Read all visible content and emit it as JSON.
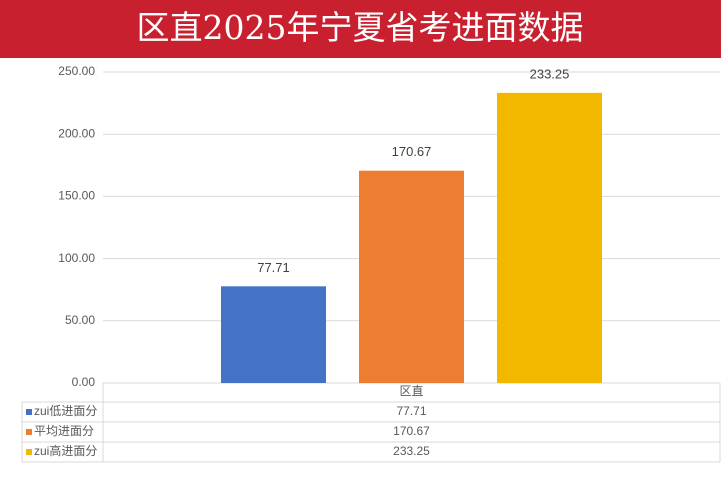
{
  "chart_data": {
    "type": "bar",
    "title": "区直2025年宁夏省考进面数据",
    "categories": [
      "区直"
    ],
    "series": [
      {
        "name": "zui低进面分",
        "color": "#4472c4",
        "values": [
          77.71
        ]
      },
      {
        "name": "平均进面分",
        "color": "#ed7d31",
        "values": [
          170.67
        ]
      },
      {
        "name": "zui高进面分",
        "color": "#f2b800",
        "values": [
          233.25
        ]
      }
    ],
    "ylim": [
      0,
      250
    ],
    "yticks": [
      {
        "value": 0,
        "label": "0.00"
      },
      {
        "value": 50,
        "label": "50.00"
      },
      {
        "value": 100,
        "label": "100.00"
      },
      {
        "value": 150,
        "label": "150.00"
      },
      {
        "value": 200,
        "label": "200.00"
      },
      {
        "value": 250,
        "label": "250.00"
      }
    ],
    "grid": true
  }
}
